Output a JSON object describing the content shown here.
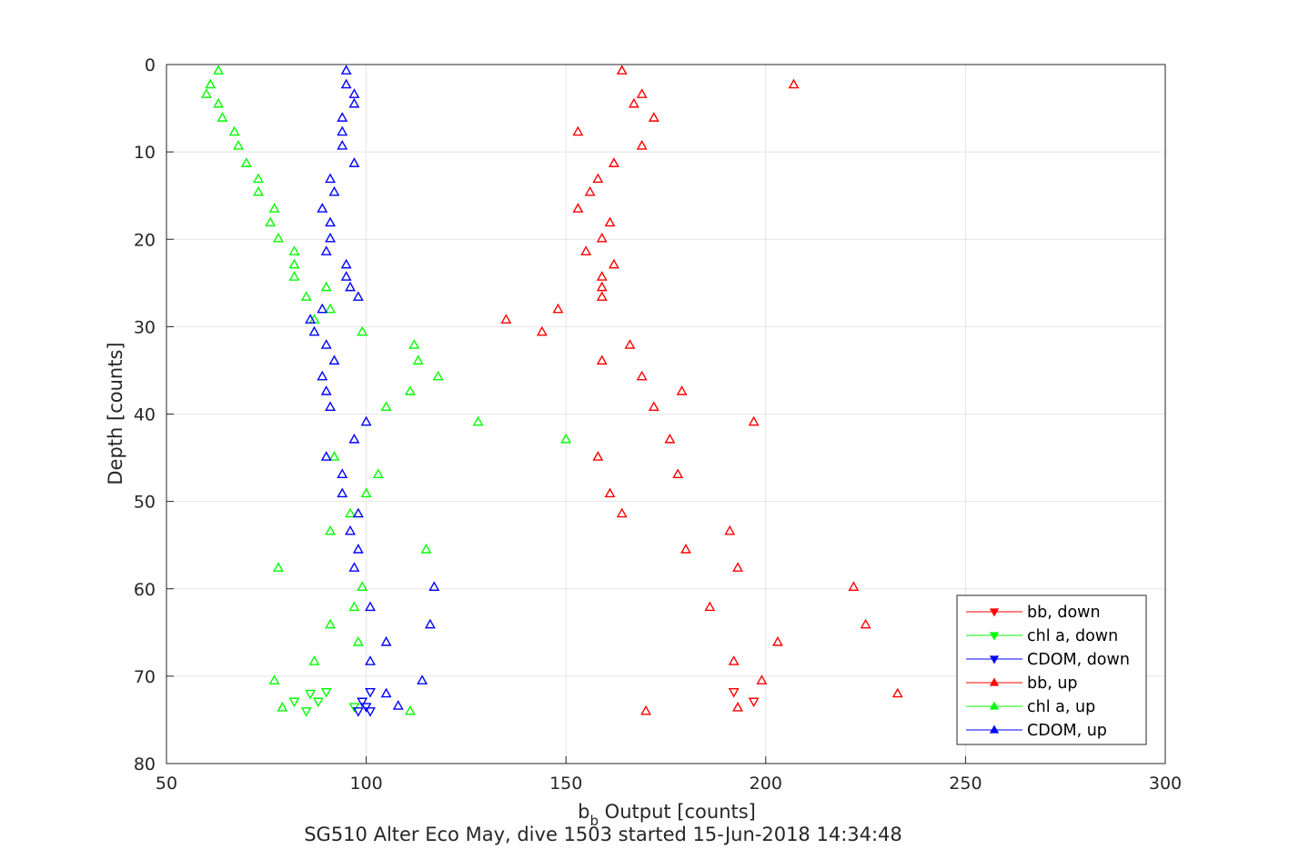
{
  "chart_data": {
    "type": "scatter",
    "xlabel": {
      "main": "b",
      "sub": "b",
      "rest": " Output [counts]"
    },
    "ylabel": "Depth [counts]",
    "caption": "SG510 Alter Eco May, dive 1503 started 15-Jun-2018 14:34:48",
    "xlim": [
      50,
      300
    ],
    "ylim": [
      0,
      80
    ],
    "y_reversed": true,
    "grid": true,
    "legend_position": "bottom-right",
    "x_ticks": [
      "50",
      "100",
      "150",
      "200",
      "250",
      "300"
    ],
    "y_ticks": [
      "0",
      "10",
      "20",
      "30",
      "40",
      "50",
      "60",
      "70",
      "80"
    ],
    "colors": {
      "red": "#ff0000",
      "green": "#00ff00",
      "blue": "#0000ff"
    },
    "series": [
      {
        "name": "bb, down",
        "color": "#ff0000",
        "marker": "triangle-down",
        "points": [
          [
            192,
            71.8
          ],
          [
            197,
            72.9
          ]
        ]
      },
      {
        "name": "chl a, down",
        "color": "#00ff00",
        "marker": "triangle-down",
        "points": [
          [
            90,
            71.8
          ],
          [
            86,
            72.0
          ],
          [
            82,
            72.9
          ],
          [
            88,
            72.9
          ],
          [
            85,
            74.0
          ],
          [
            97,
            73.5
          ]
        ]
      },
      {
        "name": "CDOM, down",
        "color": "#0000ff",
        "marker": "triangle-down",
        "points": [
          [
            101,
            71.8
          ],
          [
            99,
            72.9
          ],
          [
            100,
            73.5
          ],
          [
            98,
            74.0
          ],
          [
            101,
            74.0
          ]
        ]
      },
      {
        "name": "bb, up",
        "color": "#ff0000",
        "marker": "triangle-up",
        "points": [
          [
            164,
            0.7
          ],
          [
            207,
            2.3
          ],
          [
            169,
            3.4
          ],
          [
            167,
            4.5
          ],
          [
            172,
            6.1
          ],
          [
            153,
            7.7
          ],
          [
            169,
            9.3
          ],
          [
            162,
            11.3
          ],
          [
            158,
            13.1
          ],
          [
            156,
            14.6
          ],
          [
            153,
            16.5
          ],
          [
            161,
            18.1
          ],
          [
            159,
            19.9
          ],
          [
            155,
            21.4
          ],
          [
            162,
            22.9
          ],
          [
            159,
            24.3
          ],
          [
            159,
            25.5
          ],
          [
            159,
            26.6
          ],
          [
            148,
            28.0
          ],
          [
            135,
            29.2
          ],
          [
            144,
            30.6
          ],
          [
            166,
            32.1
          ],
          [
            159,
            33.9
          ],
          [
            169,
            35.7
          ],
          [
            179,
            37.4
          ],
          [
            172,
            39.2
          ],
          [
            197,
            40.9
          ],
          [
            176,
            42.9
          ],
          [
            158,
            44.9
          ],
          [
            178,
            46.9
          ],
          [
            161,
            49.1
          ],
          [
            164,
            51.4
          ],
          [
            191,
            53.4
          ],
          [
            180,
            55.5
          ],
          [
            193,
            57.6
          ],
          [
            222,
            59.8
          ],
          [
            186,
            62.1
          ],
          [
            225,
            64.1
          ],
          [
            203,
            66.1
          ],
          [
            192,
            68.3
          ],
          [
            199,
            70.5
          ],
          [
            233,
            72.0
          ],
          [
            193,
            73.6
          ],
          [
            170,
            74.0
          ]
        ]
      },
      {
        "name": "chl a, up",
        "color": "#00ff00",
        "marker": "triangle-up",
        "points": [
          [
            63,
            0.7
          ],
          [
            61,
            2.3
          ],
          [
            60,
            3.4
          ],
          [
            63,
            4.5
          ],
          [
            64,
            6.1
          ],
          [
            67,
            7.7
          ],
          [
            68,
            9.3
          ],
          [
            70,
            11.3
          ],
          [
            73,
            13.1
          ],
          [
            73,
            14.6
          ],
          [
            77,
            16.5
          ],
          [
            76,
            18.1
          ],
          [
            78,
            19.9
          ],
          [
            82,
            21.4
          ],
          [
            82,
            22.9
          ],
          [
            82,
            24.3
          ],
          [
            90,
            25.5
          ],
          [
            85,
            26.6
          ],
          [
            91,
            28.0
          ],
          [
            87,
            29.2
          ],
          [
            99,
            30.6
          ],
          [
            112,
            32.1
          ],
          [
            113,
            33.9
          ],
          [
            118,
            35.7
          ],
          [
            111,
            37.4
          ],
          [
            105,
            39.2
          ],
          [
            128,
            40.9
          ],
          [
            150,
            42.9
          ],
          [
            92,
            44.9
          ],
          [
            103,
            46.9
          ],
          [
            100,
            49.1
          ],
          [
            96,
            51.4
          ],
          [
            91,
            53.4
          ],
          [
            115,
            55.5
          ],
          [
            78,
            57.6
          ],
          [
            99,
            59.8
          ],
          [
            97,
            62.1
          ],
          [
            91,
            64.1
          ],
          [
            98,
            66.1
          ],
          [
            87,
            68.3
          ],
          [
            77,
            70.5
          ],
          [
            79,
            73.6
          ],
          [
            111,
            74.0
          ]
        ]
      },
      {
        "name": "CDOM, up",
        "color": "#0000ff",
        "marker": "triangle-up",
        "points": [
          [
            95,
            0.7
          ],
          [
            95,
            2.3
          ],
          [
            97,
            3.4
          ],
          [
            97,
            4.5
          ],
          [
            94,
            6.1
          ],
          [
            94,
            7.7
          ],
          [
            94,
            9.3
          ],
          [
            97,
            11.3
          ],
          [
            91,
            13.1
          ],
          [
            92,
            14.6
          ],
          [
            89,
            16.5
          ],
          [
            91,
            18.1
          ],
          [
            91,
            19.9
          ],
          [
            90,
            21.4
          ],
          [
            95,
            22.9
          ],
          [
            95,
            24.3
          ],
          [
            96,
            25.5
          ],
          [
            98,
            26.6
          ],
          [
            89,
            28.0
          ],
          [
            86,
            29.2
          ],
          [
            87,
            30.6
          ],
          [
            90,
            32.1
          ],
          [
            92,
            33.9
          ],
          [
            89,
            35.7
          ],
          [
            90,
            37.4
          ],
          [
            91,
            39.2
          ],
          [
            100,
            40.9
          ],
          [
            97,
            42.9
          ],
          [
            90,
            44.9
          ],
          [
            94,
            46.9
          ],
          [
            94,
            49.1
          ],
          [
            98,
            51.4
          ],
          [
            96,
            53.4
          ],
          [
            98,
            55.5
          ],
          [
            97,
            57.6
          ],
          [
            117,
            59.8
          ],
          [
            101,
            62.1
          ],
          [
            116,
            64.1
          ],
          [
            105,
            66.1
          ],
          [
            101,
            68.3
          ],
          [
            114,
            70.5
          ],
          [
            105,
            72.0
          ],
          [
            108,
            73.4
          ]
        ]
      }
    ]
  }
}
